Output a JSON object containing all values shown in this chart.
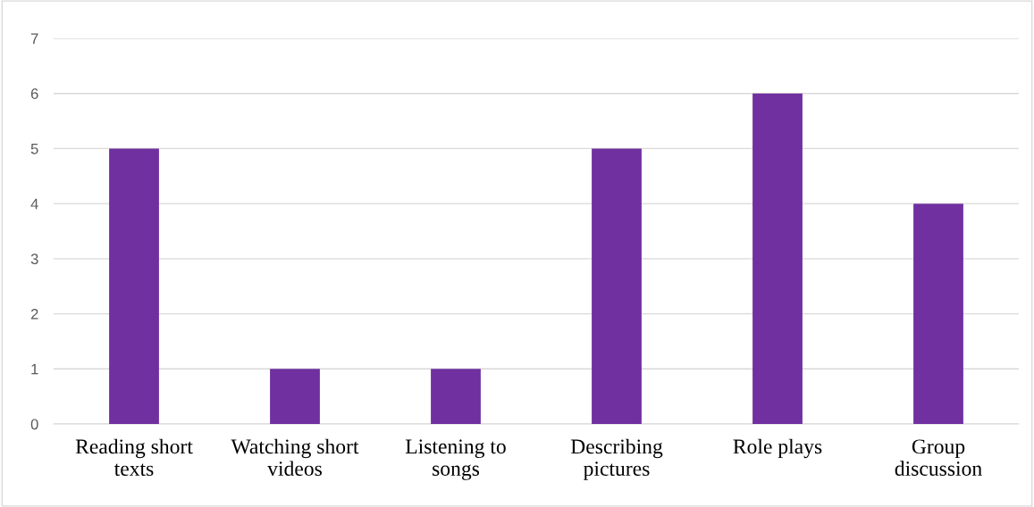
{
  "chart_data": {
    "type": "bar",
    "categories": [
      "Reading short\ntexts",
      "Watching short\nvideos",
      "Listening to\nsongs",
      "Describing\npictures",
      "Role plays",
      "Group\ndiscussion"
    ],
    "values": [
      5,
      1,
      1,
      5,
      6,
      4
    ],
    "color": "#7030a0",
    "ylim": [
      0,
      7
    ],
    "yticks": [
      0,
      1,
      2,
      3,
      4,
      5,
      6,
      7
    ],
    "grid": "y",
    "legend": false
  }
}
